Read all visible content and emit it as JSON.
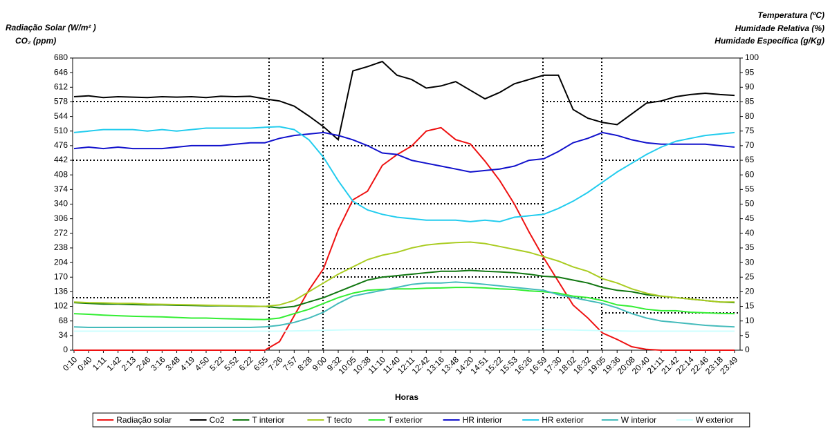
{
  "chart_data": {
    "type": "line",
    "ylabel": [
      "Radiação Solar (W/m² )",
      "CO₂ (ppm)"
    ],
    "y2label": [
      "Temperatura (ºC)",
      "Humidade Relativa (%)",
      "Humidade Específica (g/Kg)"
    ],
    "xlabel": "Horas",
    "categories": [
      "0:10",
      "0:40",
      "1:11",
      "1:42",
      "2:13",
      "2:46",
      "3:16",
      "3:48",
      "4:19",
      "4:50",
      "5:22",
      "5:52",
      "6:22",
      "6:55",
      "7:26",
      "7:57",
      "8:28",
      "9:00",
      "9:32",
      "10:05",
      "10:38",
      "11:10",
      "11:40",
      "12:11",
      "12:42",
      "13:16",
      "13:48",
      "14:20",
      "14:51",
      "15:22",
      "15:53",
      "16:26",
      "16:59",
      "17:30",
      "18:02",
      "18:32",
      "19:05",
      "19:36",
      "20:08",
      "20:40",
      "21:11",
      "21:42",
      "22:14",
      "22:46",
      "23:18",
      "23:49"
    ],
    "ylim": [
      0,
      680
    ],
    "yticks": [
      0,
      34,
      68,
      102,
      136,
      170,
      204,
      238,
      272,
      306,
      340,
      374,
      408,
      442,
      476,
      510,
      544,
      578,
      612,
      646,
      680
    ],
    "y2lim": [
      0,
      100
    ],
    "y2ticks": [
      0,
      5,
      10,
      15,
      20,
      25,
      30,
      35,
      40,
      45,
      50,
      55,
      60,
      65,
      70,
      75,
      80,
      85,
      90,
      95,
      100
    ],
    "grid": false,
    "series": [
      {
        "name": "Radiação solar",
        "color": "#ee1111",
        "values": [
          0,
          0,
          0,
          0,
          0,
          0,
          0,
          0,
          0,
          0,
          0,
          0,
          0,
          0,
          20,
          80,
          140,
          190,
          280,
          350,
          370,
          430,
          455,
          475,
          510,
          518,
          490,
          480,
          440,
          395,
          340,
          275,
          215,
          160,
          105,
          75,
          40,
          25,
          8,
          2,
          0,
          0,
          0,
          0,
          0,
          0
        ]
      },
      {
        "name": "Co2",
        "color": "#000000",
        "values": [
          590,
          592,
          588,
          590,
          589,
          588,
          590,
          589,
          590,
          588,
          591,
          590,
          591,
          585,
          580,
          568,
          545,
          520,
          490,
          650,
          660,
          672,
          640,
          630,
          610,
          615,
          625,
          605,
          585,
          600,
          620,
          630,
          640,
          640,
          560,
          540,
          530,
          525,
          550,
          575,
          580,
          590,
          595,
          598,
          595,
          593
        ]
      },
      {
        "name": "T interior",
        "color": "#117711",
        "axis": "y2",
        "values": [
          16.3,
          16,
          15.8,
          15.8,
          15.6,
          15.5,
          15.5,
          15.4,
          15.3,
          15.2,
          15.2,
          15.1,
          15,
          15,
          14.5,
          15,
          16.5,
          18,
          20,
          22,
          24,
          25,
          25.5,
          26,
          26.5,
          27,
          27,
          27.3,
          27,
          26.8,
          26.5,
          26,
          25.3,
          25,
          24,
          23,
          21.5,
          20.5,
          20,
          19,
          18.5,
          18,
          17.5,
          17,
          16.5,
          16.3
        ]
      },
      {
        "name": "T tecto",
        "color": "#aacc22",
        "axis": "y2",
        "values": [
          16.5,
          16.3,
          16.2,
          16,
          16,
          15.8,
          15.7,
          15.6,
          15.5,
          15.4,
          15.3,
          15.2,
          15.1,
          15,
          15.5,
          17,
          20,
          23,
          26,
          28.5,
          31,
          32.5,
          33.5,
          35,
          36,
          36.5,
          36.8,
          37,
          36.5,
          35.5,
          34.5,
          33.5,
          32,
          30.5,
          28.5,
          27,
          24.5,
          23,
          21,
          19.5,
          18.5,
          18,
          17.5,
          17,
          16.5,
          16.5
        ]
      },
      {
        "name": "T exterior",
        "color": "#33ee33",
        "axis": "y2",
        "values": [
          12.5,
          12.3,
          12,
          11.8,
          11.6,
          11.5,
          11.4,
          11.2,
          11,
          11,
          10.8,
          10.7,
          10.6,
          10.5,
          11,
          12.5,
          14,
          16,
          18,
          19.5,
          20.5,
          20.8,
          21,
          21,
          21.2,
          21.3,
          21.5,
          21.5,
          21.3,
          21,
          20.8,
          20.3,
          20,
          19.5,
          18.5,
          18,
          17,
          15.5,
          15,
          14,
          13.5,
          13.5,
          13,
          12.8,
          12.6,
          12.5
        ]
      },
      {
        "name": "HR interior",
        "color": "#1111cc",
        "axis": "y2",
        "values": [
          69,
          69.5,
          69,
          69.5,
          69,
          69,
          69,
          69.5,
          70,
          70,
          70,
          70.5,
          71,
          71,
          72.5,
          73.5,
          74,
          74.5,
          73.5,
          72,
          70,
          67.5,
          67,
          65,
          64,
          63,
          62,
          61,
          61.5,
          62,
          63,
          65,
          65.5,
          68,
          71,
          72.5,
          74.5,
          73.5,
          72,
          71,
          70.5,
          70.5,
          70.5,
          70.5,
          70,
          69.5
        ]
      },
      {
        "name": "HR exterior",
        "color": "#22ccee",
        "axis": "y2",
        "values": [
          74.5,
          75,
          75.5,
          75.5,
          75.5,
          75,
          75.5,
          75,
          75.5,
          76,
          76,
          76,
          76,
          76.3,
          76.5,
          75.5,
          72,
          66,
          58,
          51,
          48,
          46.5,
          45.5,
          45,
          44.5,
          44.5,
          44.5,
          44,
          44.5,
          44,
          45.5,
          46,
          46.5,
          48.5,
          51,
          54,
          57.5,
          61,
          64,
          67,
          69.5,
          71.5,
          72.5,
          73.5,
          74,
          74.5
        ]
      },
      {
        "name": "W interior",
        "color": "#44bbbb",
        "axis": "y2",
        "values": [
          8,
          7.8,
          7.8,
          7.8,
          7.8,
          7.8,
          7.8,
          7.8,
          7.8,
          7.8,
          7.8,
          7.8,
          7.8,
          8,
          8.5,
          9.5,
          11,
          13,
          16,
          18.5,
          19.5,
          20.5,
          21.5,
          22.5,
          23,
          23,
          23.3,
          23,
          22.5,
          22,
          21.5,
          21,
          20.5,
          19,
          18,
          17,
          16,
          14.5,
          12.5,
          11,
          10,
          9.5,
          9,
          8.5,
          8.2,
          8
        ]
      },
      {
        "name": "W exterior",
        "color": "#ccffff",
        "axis": "y2",
        "values": [
          6.5,
          6.5,
          6.5,
          6.5,
          6.5,
          6.5,
          6.5,
          6.5,
          6.5,
          6.5,
          6.5,
          6.5,
          6.5,
          6.5,
          6.5,
          6.6,
          6.7,
          6.8,
          6.9,
          7,
          7,
          7,
          7,
          7,
          7,
          7,
          7,
          7,
          7,
          7,
          7,
          7,
          7,
          7,
          6.9,
          6.8,
          6.7,
          6.6,
          6.5,
          6.5,
          6.5,
          6.5,
          6.5,
          6.5,
          6.5,
          6.5
        ]
      }
    ]
  }
}
